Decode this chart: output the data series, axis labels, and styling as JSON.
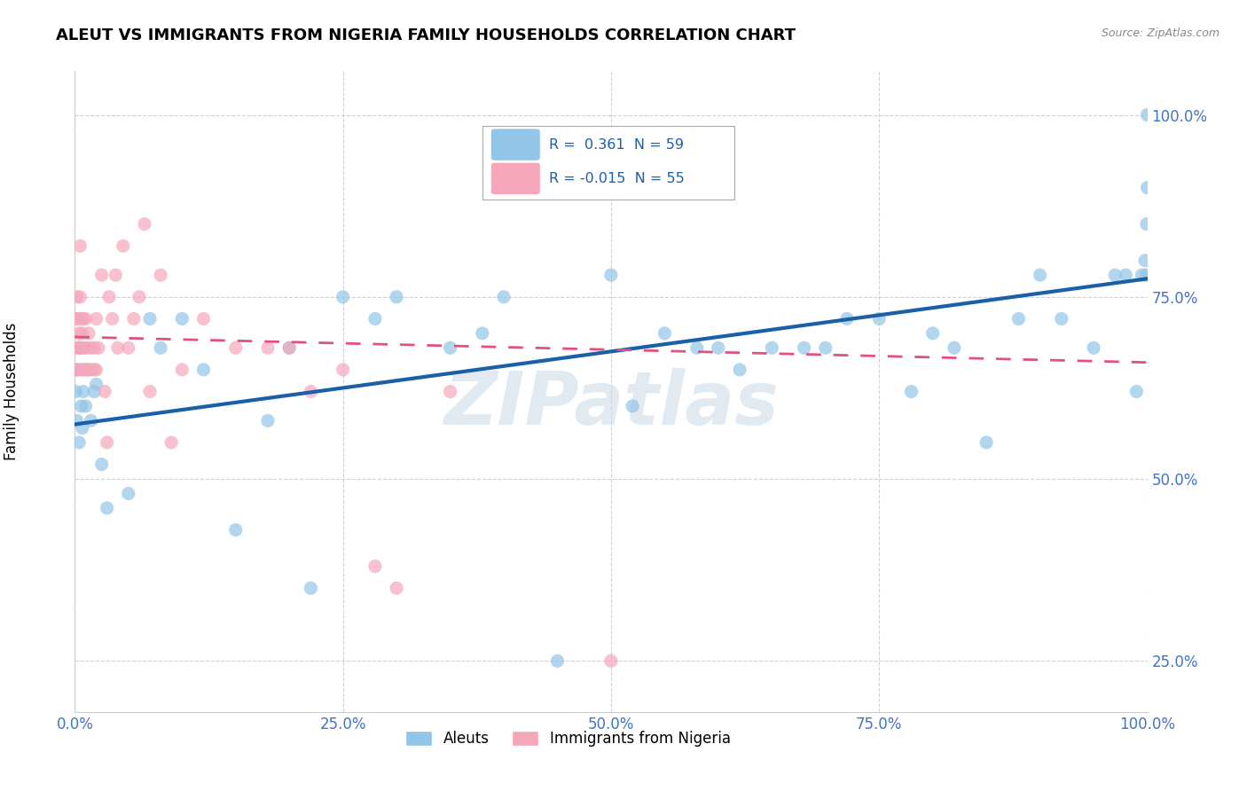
{
  "title": "ALEUT VS IMMIGRANTS FROM NIGERIA FAMILY HOUSEHOLDS CORRELATION CHART",
  "source_text": "Source: ZipAtlas.com",
  "ylabel": "Family Households",
  "xlim": [
    0.0,
    1.0
  ],
  "ylim": [
    0.18,
    1.06
  ],
  "x_ticks": [
    0.0,
    0.25,
    0.5,
    0.75,
    1.0
  ],
  "x_tick_labels": [
    "0.0%",
    "25.0%",
    "50.0%",
    "75.0%",
    "100.0%"
  ],
  "y_ticks": [
    0.25,
    0.5,
    0.75,
    1.0
  ],
  "y_tick_labels": [
    "25.0%",
    "50.0%",
    "75.0%",
    "100.0%"
  ],
  "blue_color": "#92c5e8",
  "pink_color": "#f4a7bb",
  "trendline_blue": "#1a5fa8",
  "trendline_pink": "#e05080",
  "legend_R_blue": "0.361",
  "legend_N_blue": "59",
  "legend_R_pink": "-0.015",
  "legend_N_pink": "55",
  "watermark": "ZIPatlas",
  "blue_scatter": {
    "x": [
      0.001,
      0.002,
      0.003,
      0.004,
      0.005,
      0.006,
      0.007,
      0.008,
      0.01,
      0.012,
      0.015,
      0.018,
      0.02,
      0.025,
      0.03,
      0.05,
      0.07,
      0.08,
      0.1,
      0.12,
      0.15,
      0.18,
      0.2,
      0.22,
      0.25,
      0.28,
      0.3,
      0.35,
      0.38,
      0.4,
      0.45,
      0.5,
      0.52,
      0.55,
      0.58,
      0.6,
      0.62,
      0.65,
      0.68,
      0.7,
      0.72,
      0.75,
      0.78,
      0.8,
      0.82,
      0.85,
      0.88,
      0.9,
      0.92,
      0.95,
      0.97,
      0.98,
      0.99,
      0.995,
      0.998,
      0.999,
      0.9995,
      1.0,
      1.0
    ],
    "y": [
      0.62,
      0.58,
      0.65,
      0.55,
      0.68,
      0.6,
      0.57,
      0.62,
      0.6,
      0.65,
      0.58,
      0.62,
      0.63,
      0.52,
      0.46,
      0.48,
      0.72,
      0.68,
      0.72,
      0.65,
      0.43,
      0.58,
      0.68,
      0.35,
      0.75,
      0.72,
      0.75,
      0.68,
      0.7,
      0.75,
      0.25,
      0.78,
      0.6,
      0.7,
      0.68,
      0.68,
      0.65,
      0.68,
      0.68,
      0.68,
      0.72,
      0.72,
      0.62,
      0.7,
      0.68,
      0.55,
      0.72,
      0.78,
      0.72,
      0.68,
      0.78,
      0.78,
      0.62,
      0.78,
      0.8,
      0.78,
      0.85,
      0.9,
      1.0
    ]
  },
  "pink_scatter": {
    "x": [
      0.001,
      0.001,
      0.002,
      0.002,
      0.003,
      0.003,
      0.004,
      0.004,
      0.005,
      0.005,
      0.006,
      0.006,
      0.007,
      0.007,
      0.008,
      0.008,
      0.009,
      0.01,
      0.01,
      0.011,
      0.012,
      0.013,
      0.015,
      0.015,
      0.018,
      0.018,
      0.02,
      0.02,
      0.022,
      0.025,
      0.028,
      0.03,
      0.032,
      0.035,
      0.038,
      0.04,
      0.045,
      0.05,
      0.055,
      0.06,
      0.065,
      0.07,
      0.08,
      0.09,
      0.1,
      0.12,
      0.15,
      0.18,
      0.2,
      0.22,
      0.25,
      0.28,
      0.3,
      0.35,
      0.5
    ],
    "y": [
      0.72,
      0.65,
      0.68,
      0.75,
      0.65,
      0.72,
      0.7,
      0.68,
      0.82,
      0.75,
      0.68,
      0.72,
      0.65,
      0.7,
      0.65,
      0.72,
      0.68,
      0.65,
      0.72,
      0.68,
      0.65,
      0.7,
      0.65,
      0.68,
      0.65,
      0.68,
      0.65,
      0.72,
      0.68,
      0.78,
      0.62,
      0.55,
      0.75,
      0.72,
      0.78,
      0.68,
      0.82,
      0.68,
      0.72,
      0.75,
      0.85,
      0.62,
      0.78,
      0.55,
      0.65,
      0.72,
      0.68,
      0.68,
      0.68,
      0.62,
      0.65,
      0.38,
      0.35,
      0.62,
      0.25
    ]
  },
  "trendline_blue_start_y": 0.575,
  "trendline_blue_end_y": 0.775,
  "trendline_pink_start_y": 0.695,
  "trendline_pink_end_y": 0.66
}
